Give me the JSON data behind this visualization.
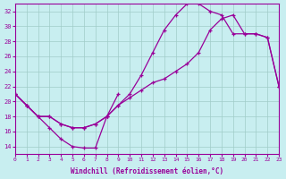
{
  "xlabel": "Windchill (Refroidissement éolien,°C)",
  "xlim": [
    0,
    23
  ],
  "ylim": [
    13,
    33
  ],
  "yticks": [
    14,
    16,
    18,
    20,
    22,
    24,
    26,
    28,
    30,
    32
  ],
  "xticks": [
    0,
    1,
    2,
    3,
    4,
    5,
    6,
    7,
    8,
    9,
    10,
    11,
    12,
    13,
    14,
    15,
    16,
    17,
    18,
    19,
    20,
    21,
    22,
    23
  ],
  "bg_color": "#c8eef0",
  "grid_color": "#a0ccc8",
  "line_color": "#990099",
  "curve1_x": [
    0,
    1,
    2,
    3,
    4,
    5,
    6,
    7,
    8,
    9,
    10,
    11,
    12,
    13,
    14,
    15,
    16,
    17,
    18,
    19,
    20,
    21,
    22,
    23
  ],
  "curve1_y": [
    21,
    19.5,
    18.0,
    18.0,
    17.0,
    16.5,
    16.5,
    17.0,
    18.0,
    19.5,
    20.5,
    21.5,
    22.5,
    23.0,
    24.0,
    25.0,
    26.5,
    29.5,
    31.0,
    31.5,
    29.0,
    29.0,
    28.5,
    22.0
  ],
  "curve2_x": [
    0,
    1,
    2,
    3,
    4,
    5,
    6,
    7,
    8,
    9,
    10,
    11,
    12,
    13,
    14,
    15,
    16,
    17,
    18,
    19,
    20,
    21,
    22,
    23
  ],
  "curve2_y": [
    21,
    19.5,
    18.0,
    18.0,
    17.0,
    16.5,
    16.5,
    17.0,
    18.0,
    19.5,
    21.0,
    23.5,
    26.5,
    29.5,
    31.5,
    33.0,
    33.0,
    32.0,
    31.5,
    29.0,
    29.0,
    29.0,
    28.5,
    22.0
  ],
  "curve3_x": [
    0,
    1,
    2,
    3,
    4,
    5,
    6,
    7,
    8,
    9
  ],
  "curve3_y": [
    21,
    19.5,
    18.0,
    16.5,
    15.0,
    14.0,
    13.8,
    13.8,
    18.0,
    21.0
  ]
}
